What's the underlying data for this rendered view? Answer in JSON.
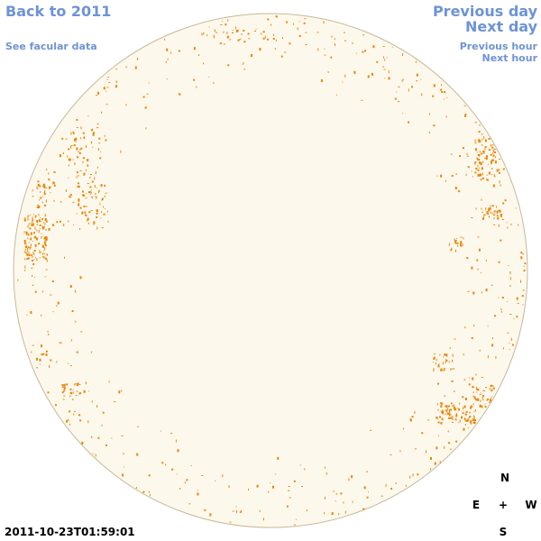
{
  "nav": {
    "back": "Back to 2011",
    "facular": "See facular data",
    "previous_day": "Previous day",
    "next_day": "Next day",
    "previous_hour": "Previous hour",
    "next_hour": "Next hour"
  },
  "timestamp": "2011-10-23T01:59:01",
  "compass": {
    "north": "N",
    "east": "E",
    "center": "+",
    "west": "W",
    "south": "S"
  },
  "colors": {
    "link": "#6e93d6",
    "disk_fill": "#fdf8ec",
    "disk_stroke": "#c8b89a",
    "spot": "#e8860a"
  }
}
